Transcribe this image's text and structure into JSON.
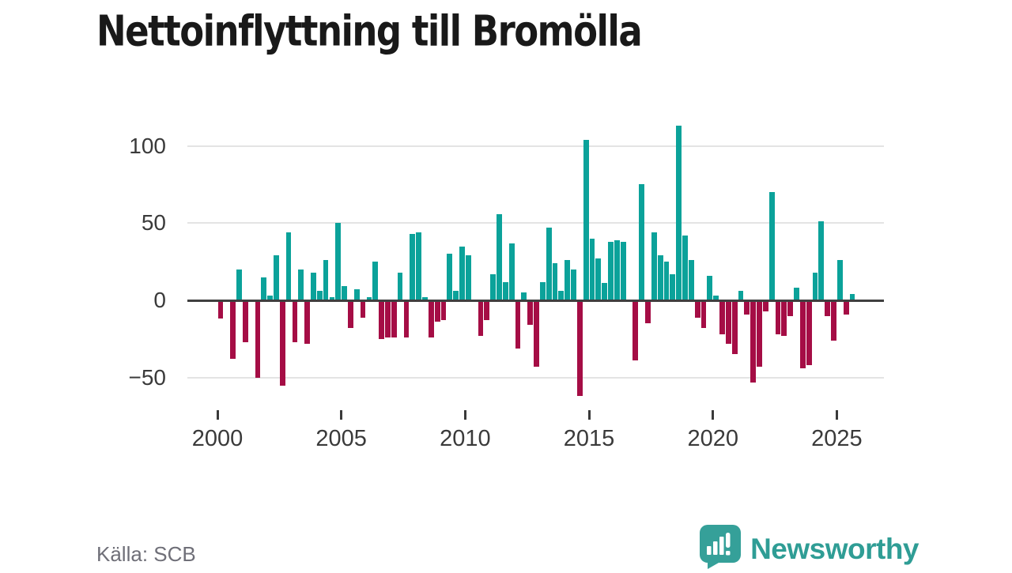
{
  "header": {
    "title": "Nettoinflyttning till Bromölla"
  },
  "footer": {
    "source": "Källa: SCB",
    "brand": "Newsworthy",
    "logo_icon": "bar-chart-speech-bubble"
  },
  "colors": {
    "positive": "#0ba29a",
    "negative": "#a50d45",
    "axis": "#3f3f3f",
    "grid": "#e4e4e4",
    "tick_label": "#3a3a3a",
    "muted_text": "#6f6f78",
    "brand": "#2f9d95",
    "title_text": "#191919"
  },
  "chart_data": {
    "type": "bar",
    "title": "Nettoinflyttning till Bromölla",
    "x_unit": "quarter",
    "start_year": 2000,
    "start_quarter": 1,
    "end_year": 2025,
    "end_quarter": 3,
    "values": [
      -12,
      0,
      -38,
      20,
      -27,
      0,
      -50,
      15,
      3,
      29,
      -55,
      44,
      -27,
      20,
      -28,
      18,
      6,
      26,
      2,
      50,
      9,
      -18,
      7,
      -11,
      2,
      25,
      -25,
      -24,
      -24,
      18,
      -24,
      43,
      44,
      2,
      -24,
      -14,
      -13,
      30,
      6,
      35,
      29,
      0,
      -23,
      -13,
      17,
      56,
      12,
      37,
      -31,
      5,
      -16,
      -43,
      12,
      47,
      24,
      6,
      26,
      20,
      -62,
      104,
      40,
      27,
      11,
      38,
      39,
      38,
      0,
      -39,
      75,
      -15,
      44,
      29,
      25,
      17,
      113,
      42,
      26,
      -11,
      -18,
      16,
      3,
      -22,
      -28,
      -35,
      6,
      -9,
      -53,
      -43,
      -7,
      70,
      -22,
      -23,
      -10,
      8,
      -44,
      -42,
      18,
      51,
      -10,
      -26,
      26,
      -9,
      4
    ],
    "x_ticks": [
      "2000",
      "2005",
      "2010",
      "2015",
      "2020",
      "2025"
    ],
    "y_ticks": [
      100,
      50,
      0,
      -50
    ],
    "ylim": [
      -65,
      115
    ],
    "grid": true,
    "legend": "none",
    "source": "Källa: SCB"
  }
}
